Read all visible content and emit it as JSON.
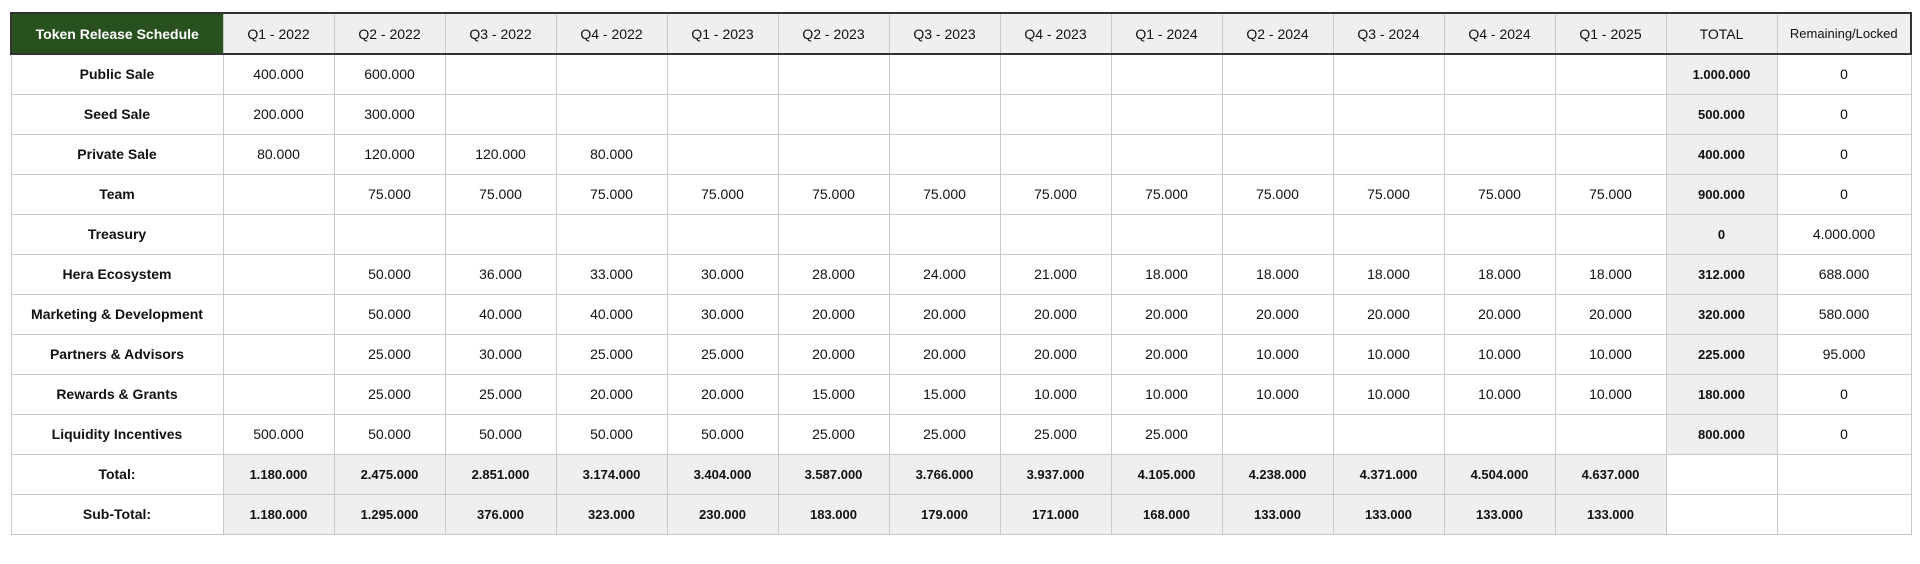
{
  "table": {
    "title": "Token Release Schedule",
    "quarters": [
      "Q1 - 2022",
      "Q2 - 2022",
      "Q3 - 2022",
      "Q4 - 2022",
      "Q1 - 2023",
      "Q2 - 2023",
      "Q3 - 2023",
      "Q4 - 2023",
      "Q1 - 2024",
      "Q2 - 2024",
      "Q3 - 2024",
      "Q4 - 2024",
      "Q1 - 2025"
    ],
    "total_header": "TOTAL",
    "remaining_header": "Remaining/Locked",
    "rows": [
      {
        "label": "Public Sale",
        "values": [
          "400.000",
          "600.000",
          "",
          "",
          "",
          "",
          "",
          "",
          "",
          "",
          "",
          "",
          ""
        ],
        "total": "1.000.000",
        "remaining": "0"
      },
      {
        "label": "Seed Sale",
        "values": [
          "200.000",
          "300.000",
          "",
          "",
          "",
          "",
          "",
          "",
          "",
          "",
          "",
          "",
          ""
        ],
        "total": "500.000",
        "remaining": "0"
      },
      {
        "label": "Private Sale",
        "values": [
          "80.000",
          "120.000",
          "120.000",
          "80.000",
          "",
          "",
          "",
          "",
          "",
          "",
          "",
          "",
          ""
        ],
        "total": "400.000",
        "remaining": "0"
      },
      {
        "label": "Team",
        "values": [
          "",
          "75.000",
          "75.000",
          "75.000",
          "75.000",
          "75.000",
          "75.000",
          "75.000",
          "75.000",
          "75.000",
          "75.000",
          "75.000",
          "75.000"
        ],
        "total": "900.000",
        "remaining": "0"
      },
      {
        "label": "Treasury",
        "values": [
          "",
          "",
          "",
          "",
          "",
          "",
          "",
          "",
          "",
          "",
          "",
          "",
          ""
        ],
        "total": "0",
        "remaining": "4.000.000"
      },
      {
        "label": "Hera Ecosystem",
        "values": [
          "",
          "50.000",
          "36.000",
          "33.000",
          "30.000",
          "28.000",
          "24.000",
          "21.000",
          "18.000",
          "18.000",
          "18.000",
          "18.000",
          "18.000"
        ],
        "total": "312.000",
        "remaining": "688.000"
      },
      {
        "label": "Marketing & Development",
        "values": [
          "",
          "50.000",
          "40.000",
          "40.000",
          "30.000",
          "20.000",
          "20.000",
          "20.000",
          "20.000",
          "20.000",
          "20.000",
          "20.000",
          "20.000"
        ],
        "total": "320.000",
        "remaining": "580.000"
      },
      {
        "label": "Partners & Advisors",
        "values": [
          "",
          "25.000",
          "30.000",
          "25.000",
          "25.000",
          "20.000",
          "20.000",
          "20.000",
          "20.000",
          "10.000",
          "10.000",
          "10.000",
          "10.000"
        ],
        "total": "225.000",
        "remaining": "95.000"
      },
      {
        "label": "Rewards & Grants",
        "values": [
          "",
          "25.000",
          "25.000",
          "20.000",
          "20.000",
          "15.000",
          "15.000",
          "10.000",
          "10.000",
          "10.000",
          "10.000",
          "10.000",
          "10.000"
        ],
        "total": "180.000",
        "remaining": "0"
      },
      {
        "label": "Liquidity Incentives",
        "values": [
          "500.000",
          "50.000",
          "50.000",
          "50.000",
          "50.000",
          "25.000",
          "25.000",
          "25.000",
          "25.000",
          "",
          "",
          "",
          ""
        ],
        "total": "800.000",
        "remaining": "0"
      }
    ],
    "summary_rows": [
      {
        "label": "Total:",
        "values": [
          "1.180.000",
          "2.475.000",
          "2.851.000",
          "3.174.000",
          "3.404.000",
          "3.587.000",
          "3.766.000",
          "3.937.000",
          "4.105.000",
          "4.238.000",
          "4.371.000",
          "4.504.000",
          "4.637.000"
        ],
        "total": "",
        "remaining": ""
      },
      {
        "label": "Sub-Total:",
        "values": [
          "1.180.000",
          "1.295.000",
          "376.000",
          "323.000",
          "230.000",
          "183.000",
          "179.000",
          "171.000",
          "168.000",
          "133.000",
          "133.000",
          "133.000",
          "133.000"
        ],
        "total": "",
        "remaining": ""
      }
    ]
  },
  "colors": {
    "title_background": "#29501f",
    "header_background": "#efefef",
    "highlight_background": "#efefef",
    "grid_border": "#c9c9c9"
  }
}
